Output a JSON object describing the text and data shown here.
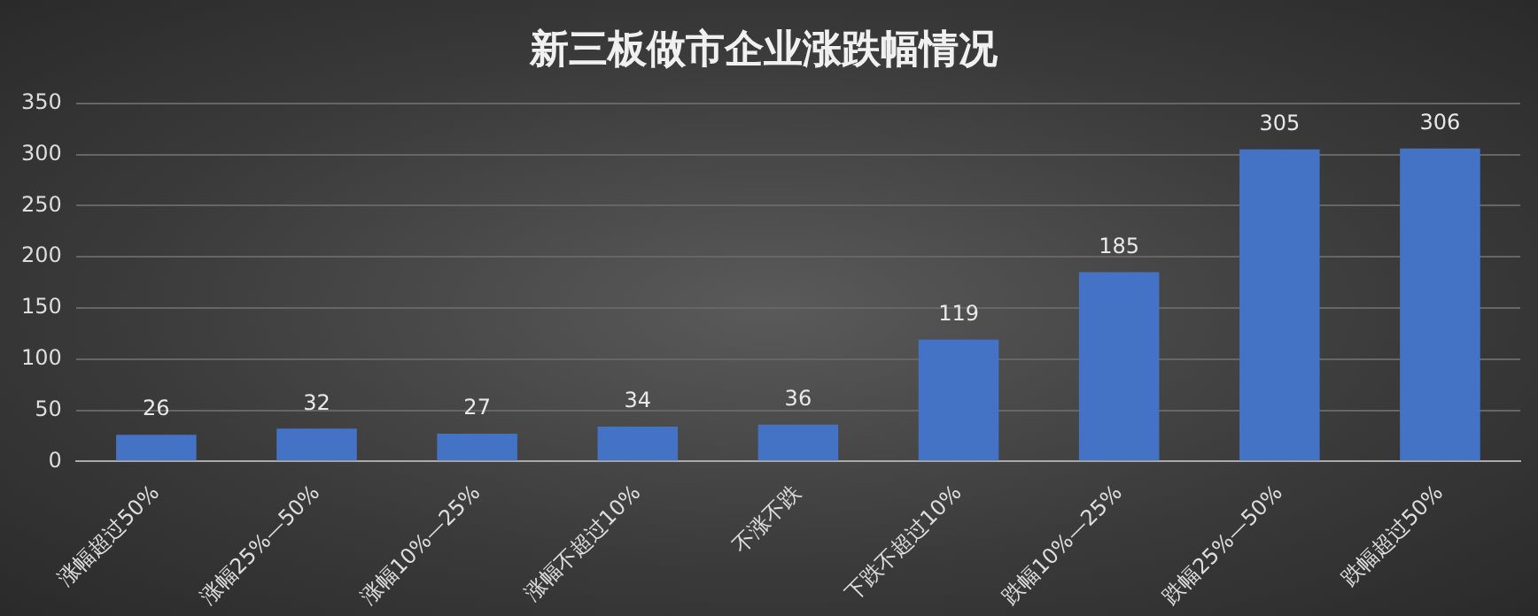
{
  "chart_data": {
    "type": "bar",
    "title": "新三板做市企业涨跌幅情况",
    "categories": [
      "涨幅超过50%",
      "涨幅25%—50%",
      "涨幅10%—25%",
      "涨幅不超过10%",
      "不涨不跌",
      "下跌不超过10%",
      "跌幅10%—25%",
      "跌幅25%—50%",
      "跌幅超过50%"
    ],
    "values": [
      26,
      32,
      27,
      34,
      36,
      119,
      185,
      305,
      306
    ],
    "color": "#4472c4",
    "ylim": [
      0,
      350
    ],
    "yticks": [
      0,
      50,
      100,
      150,
      200,
      250,
      300,
      350
    ],
    "grid": "y",
    "data_labels": true,
    "legend": false
  }
}
